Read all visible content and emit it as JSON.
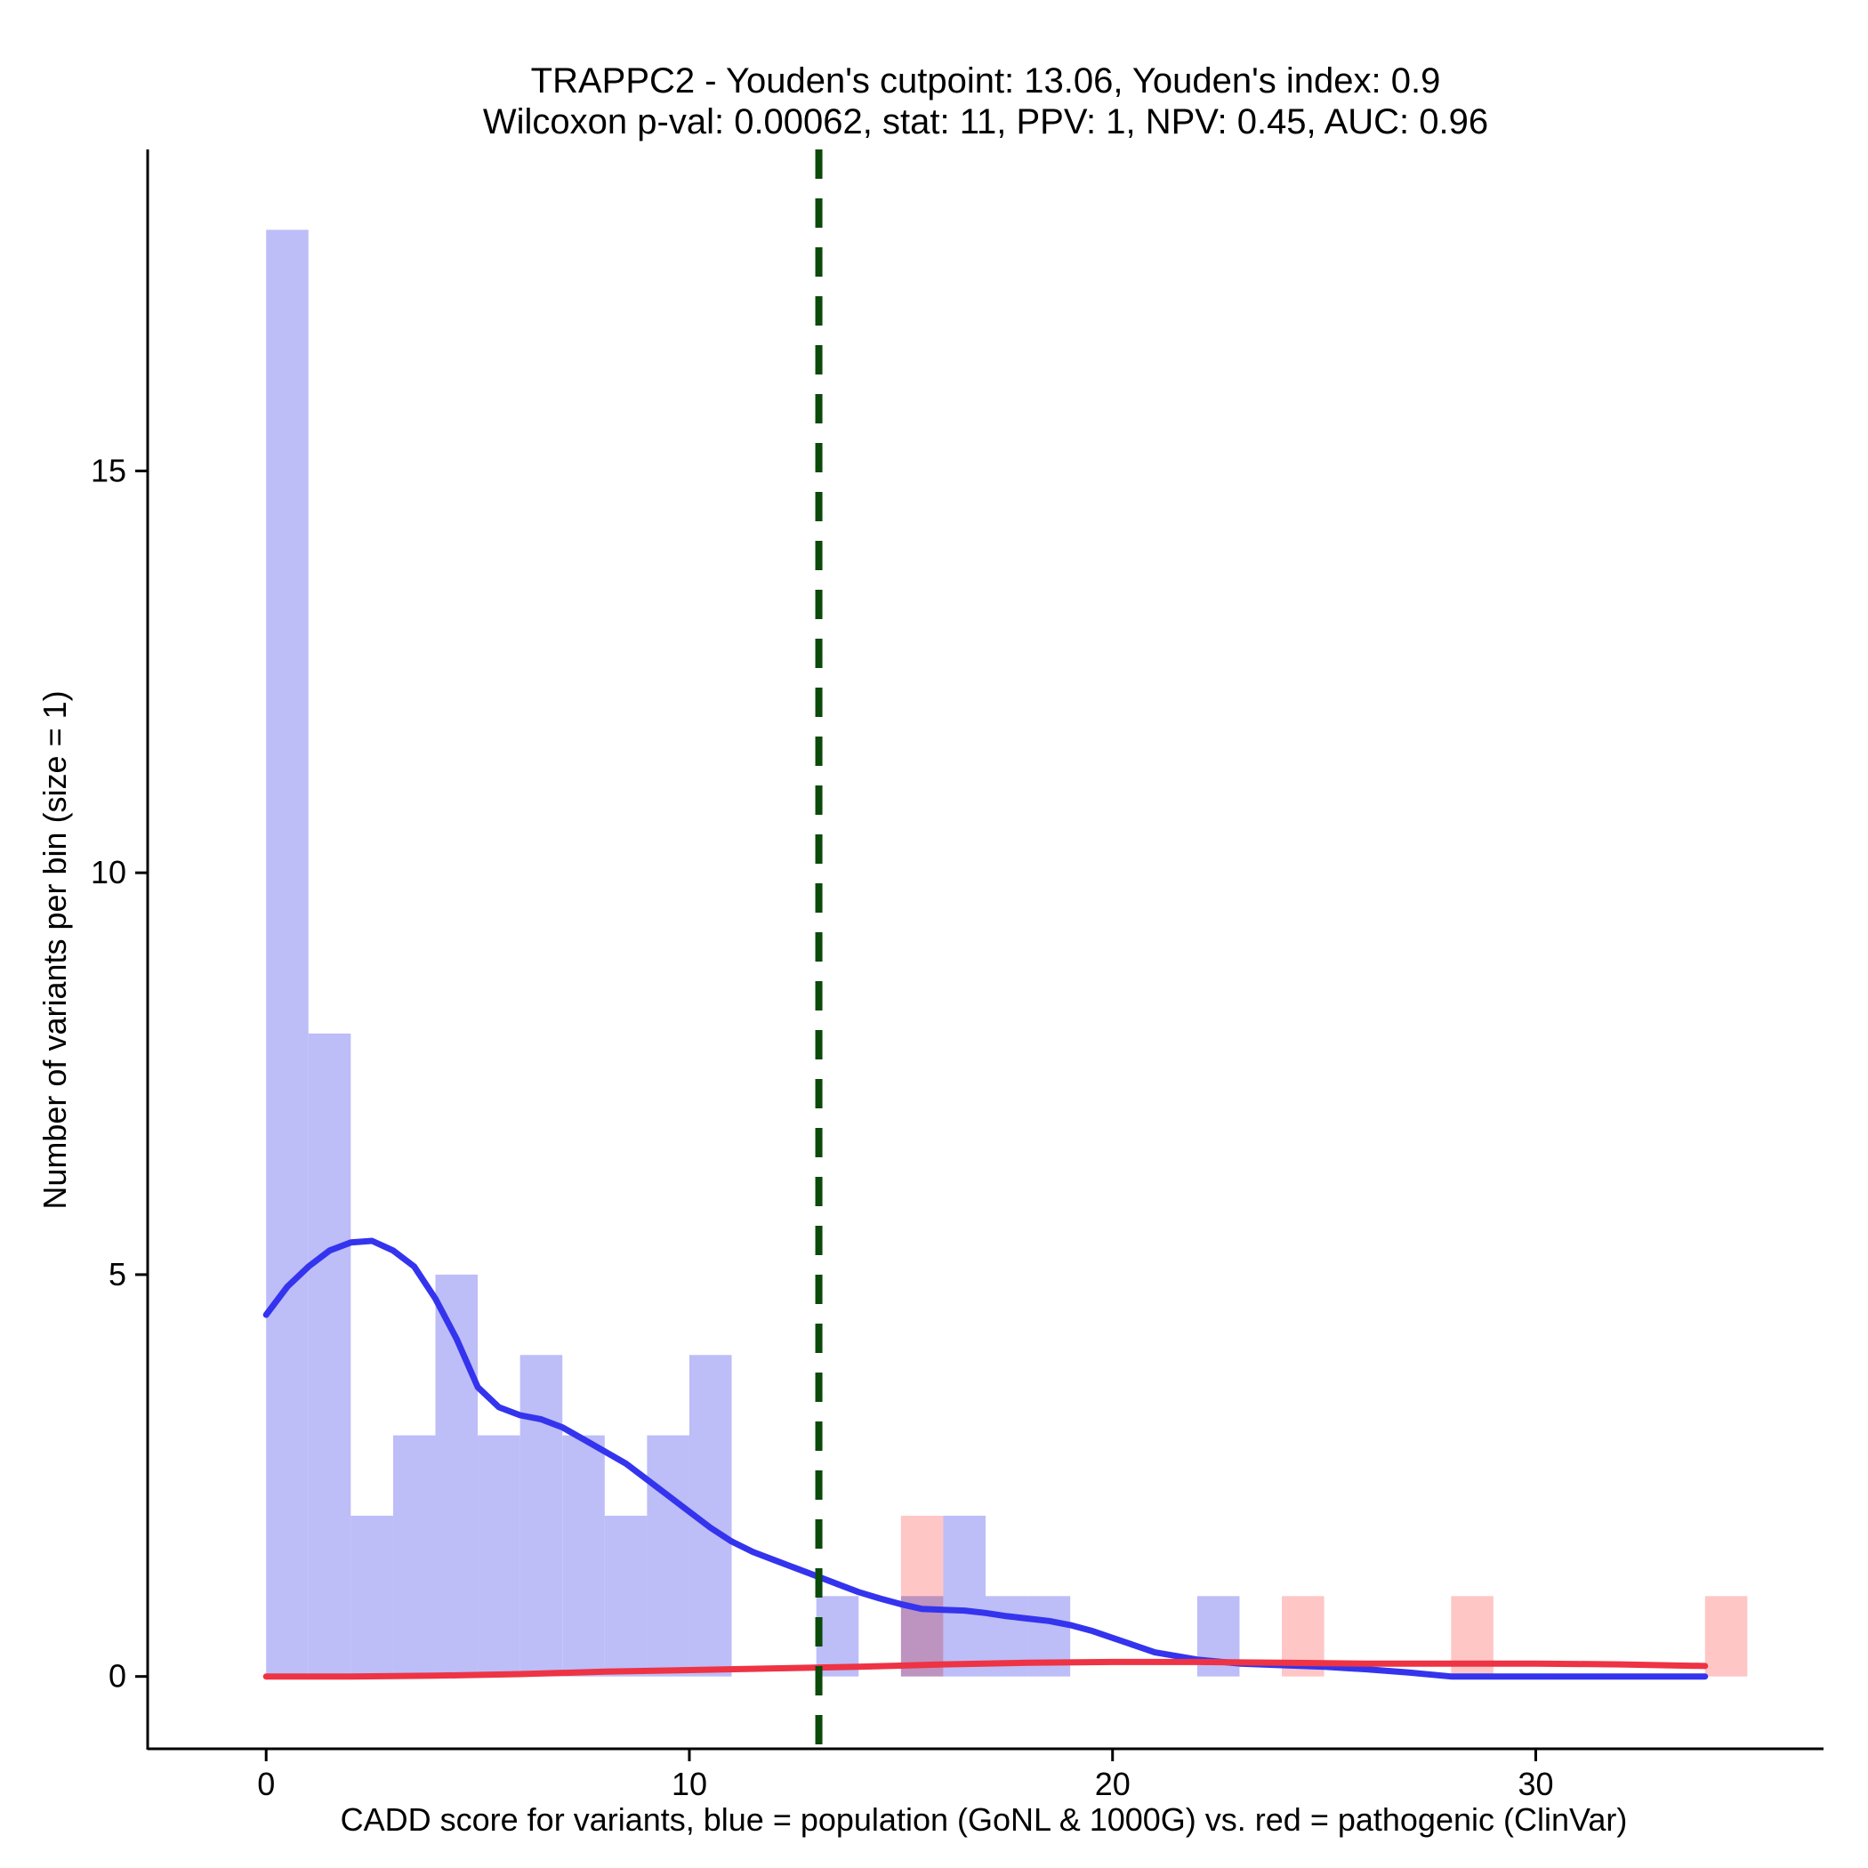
{
  "chart_data": {
    "type": "histogram",
    "title": "TRAPPC2 - Youden's cutpoint: 13.06, Youden's index: 0.9",
    "subtitle": "Wilcoxon p-val: 0.00062, stat: 11, PPV: 1, NPV: 0.45, AUC: 0.96",
    "xlabel": "CADD score for variants, blue = population (GoNL & 1000G) vs. red = pathogenic (ClinVar)",
    "ylabel": "Number of variants per bin (size = 1)",
    "xlim": [
      -2.8,
      36.8
    ],
    "ylim": [
      -0.9,
      19.0
    ],
    "x_ticks": [
      0,
      10,
      20,
      30
    ],
    "x_tick_labels": [
      "0",
      "10",
      "20",
      "30"
    ],
    "y_ticks": [
      0,
      5,
      10,
      15
    ],
    "y_tick_labels": [
      "0",
      "5",
      "10",
      "15"
    ],
    "bin_size": 1,
    "cutpoint": 13.06,
    "cutpoint_color": "#0b4a0b",
    "series": [
      {
        "name": "population (GoNL & 1000G)",
        "color": "#bdbdf8",
        "bins": [
          {
            "start": 0,
            "count": 18
          },
          {
            "start": 1,
            "count": 8
          },
          {
            "start": 2,
            "count": 2
          },
          {
            "start": 3,
            "count": 3
          },
          {
            "start": 4,
            "count": 5
          },
          {
            "start": 5,
            "count": 3
          },
          {
            "start": 6,
            "count": 4
          },
          {
            "start": 7,
            "count": 3
          },
          {
            "start": 8,
            "count": 2
          },
          {
            "start": 9,
            "count": 3
          },
          {
            "start": 10,
            "count": 4
          },
          {
            "start": 13,
            "count": 1
          },
          {
            "start": 15,
            "count": 1
          },
          {
            "start": 16,
            "count": 2
          },
          {
            "start": 17,
            "count": 1
          },
          {
            "start": 18,
            "count": 1
          },
          {
            "start": 22,
            "count": 1
          }
        ]
      },
      {
        "name": "pathogenic (ClinVar)",
        "color": "#ffbcbc",
        "bins": [
          {
            "start": 15,
            "count": 2
          },
          {
            "start": 24,
            "count": 1
          },
          {
            "start": 28,
            "count": 1
          },
          {
            "start": 34,
            "count": 1
          }
        ]
      }
    ],
    "density_lines": [
      {
        "name": "population density",
        "color": "#3434ee",
        "x": [
          0,
          0.5,
          1,
          1.5,
          2,
          2.5,
          3,
          3.5,
          4,
          4.5,
          5,
          5.5,
          6,
          6.5,
          7,
          7.5,
          8,
          8.5,
          9,
          9.5,
          10,
          10.5,
          11,
          11.5,
          12,
          12.5,
          13,
          13.5,
          14,
          14.5,
          15,
          15.5,
          16,
          16.5,
          17,
          17.5,
          18,
          18.5,
          19,
          19.5,
          20,
          20.5,
          21,
          22,
          23,
          24,
          25,
          26,
          27,
          28,
          29,
          30,
          31,
          32,
          33,
          34
        ],
        "values": [
          4.5,
          4.85,
          5.1,
          5.3,
          5.4,
          5.42,
          5.3,
          5.1,
          4.7,
          4.2,
          3.6,
          3.35,
          3.25,
          3.2,
          3.1,
          2.95,
          2.8,
          2.65,
          2.45,
          2.25,
          2.05,
          1.85,
          1.68,
          1.55,
          1.45,
          1.35,
          1.25,
          1.15,
          1.05,
          0.97,
          0.9,
          0.84,
          0.83,
          0.82,
          0.79,
          0.75,
          0.72,
          0.69,
          0.64,
          0.57,
          0.48,
          0.39,
          0.3,
          0.21,
          0.16,
          0.14,
          0.12,
          0.09,
          0.05,
          0.0,
          0.0,
          0.0,
          0.0,
          0.0,
          0.0,
          0.0
        ]
      },
      {
        "name": "pathogenic density",
        "color": "#ee3344",
        "x": [
          0,
          2,
          4,
          6,
          8,
          10,
          12,
          14,
          16,
          18,
          20,
          22,
          24,
          26,
          28,
          30,
          32,
          34
        ],
        "values": [
          0.0,
          0.0,
          0.01,
          0.03,
          0.06,
          0.08,
          0.1,
          0.12,
          0.15,
          0.17,
          0.18,
          0.18,
          0.17,
          0.16,
          0.16,
          0.16,
          0.15,
          0.13
        ]
      }
    ]
  }
}
